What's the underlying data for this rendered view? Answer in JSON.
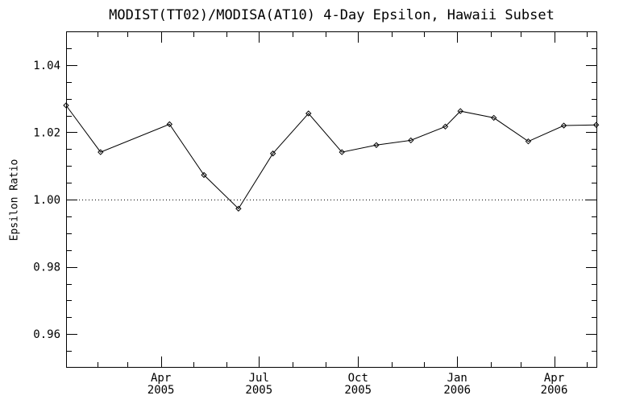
{
  "page": {
    "background": "#ffffff",
    "foreground": "#000000"
  },
  "chart_data": {
    "type": "line",
    "title": "MODIST(TT02)/MODISA(AT10) 4-Day Epsilon, Hawaii Subset",
    "xlabel": "",
    "ylabel": "Epsilon Ratio",
    "line_color": "#000000",
    "marker": "diamond",
    "grid": false,
    "legend_position": "none",
    "ylim": [
      0.95,
      1.05
    ],
    "y_major_ticks": [
      {
        "value": 0.96,
        "label": "0.96"
      },
      {
        "value": 0.98,
        "label": "0.98"
      },
      {
        "value": 1.0,
        "label": "1.00"
      },
      {
        "value": 1.02,
        "label": "1.02"
      },
      {
        "value": 1.04,
        "label": "1.04"
      }
    ],
    "y_minor_tick_values": [
      0.955,
      0.965,
      0.97,
      0.975,
      0.985,
      0.99,
      0.995,
      1.005,
      1.01,
      1.015,
      1.025,
      1.03,
      1.035,
      1.045
    ],
    "x_axis": {
      "domain_days": [
        2,
        495
      ],
      "major_ticks": [
        {
          "day": 90,
          "month": "Apr",
          "year": "2005"
        },
        {
          "day": 181,
          "month": "Jul",
          "year": "2005"
        },
        {
          "day": 273,
          "month": "Oct",
          "year": "2005"
        },
        {
          "day": 365,
          "month": "Jan",
          "year": "2006"
        },
        {
          "day": 455,
          "month": "Apr",
          "year": "2006"
        }
      ],
      "minor_tick_days": [
        31,
        59,
        120,
        151,
        212,
        243,
        304,
        334,
        396,
        424,
        485
      ]
    },
    "reference_line": {
      "value": 1.0,
      "style": "dotted"
    },
    "series": [
      {
        "name": "epsilon-ratio",
        "x_days": [
          2,
          34,
          98,
          130,
          162,
          194,
          227,
          258,
          290,
          322,
          354,
          368,
          399,
          431,
          464,
          494
        ],
        "x_dates_approx": [
          "2005-01-03",
          "2005-02-04",
          "2005-04-09",
          "2005-05-11",
          "2005-06-12",
          "2005-07-14",
          "2005-08-16",
          "2005-09-16",
          "2005-10-18",
          "2005-11-19",
          "2005-12-21",
          "2006-01-04",
          "2006-02-04",
          "2006-03-08",
          "2006-04-10",
          "2006-05-10"
        ],
        "values": [
          1.028,
          1.0141,
          1.0224,
          1.0073,
          0.9973,
          1.0137,
          1.0256,
          1.0141,
          1.0162,
          1.0176,
          1.0217,
          1.0263,
          1.0243,
          1.0173,
          1.022,
          1.0222
        ]
      }
    ]
  }
}
